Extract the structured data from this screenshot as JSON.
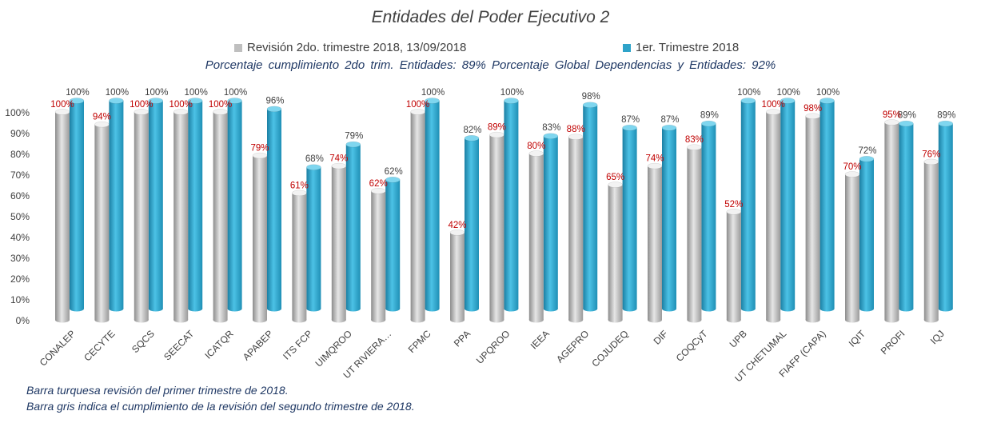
{
  "chart_data": {
    "type": "bar",
    "title": "Entidades del Poder Ejecutivo 2",
    "categories": [
      "CONALEP",
      "CECYTE",
      "SQCS",
      "SEECAT",
      "ICATQR",
      "APABEP",
      "ITS FCP",
      "UIMQROO",
      "UT RIVIERA…",
      "FPMC",
      "PPA",
      "UPQROO",
      "IEEA",
      "AGEPRO",
      "COJUDEQ",
      "DIF",
      "COQCyT",
      "UPB",
      "UT CHETUMAL",
      "FIAFP (CAPA)",
      "IQIT",
      "PROFI",
      "IQJ"
    ],
    "series": [
      {
        "name": "Revisión 2do. trimestre 2018, 13/09/2018",
        "color": "#bfbfbf",
        "values": [
          100,
          94,
          100,
          100,
          100,
          79,
          61,
          74,
          62,
          100,
          42,
          89,
          80,
          88,
          65,
          74,
          83,
          52,
          100,
          98,
          70,
          95,
          76
        ]
      },
      {
        "name": "1er. Trimestre 2018",
        "color": "#2ea3c9",
        "values": [
          100,
          100,
          100,
          100,
          100,
          96,
          68,
          79,
          62,
          100,
          82,
          100,
          83,
          98,
          87,
          87,
          89,
          100,
          100,
          100,
          72,
          89,
          89
        ]
      }
    ],
    "y_ticks": [
      "0%",
      "10%",
      "20%",
      "30%",
      "40%",
      "50%",
      "60%",
      "70%",
      "80%",
      "90%",
      "100%"
    ],
    "ylim": [
      0,
      100
    ],
    "grid": false,
    "legend_position": "top",
    "value_label_colors": {
      "gray": "#c00000",
      "blue": "#404040"
    }
  },
  "summary": {
    "text": "Porcentaje cumplimiento 2do trim. Entidades: 89%   Porcentaje Global Dependencias y Entidades: 92%"
  },
  "notes": {
    "line1": "Barra turquesa revisión del primer trimestre de 2018.",
    "line2": "Barra gris indica el cumplimiento de la revisión del segundo trimestre de 2018."
  }
}
